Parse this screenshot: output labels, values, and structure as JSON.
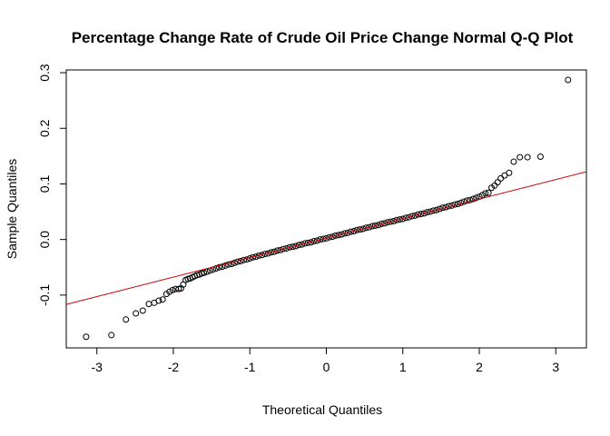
{
  "chart_data": {
    "type": "scatter",
    "title": "Percentage Change Rate of Crude Oil Price Change Normal Q-Q Plot",
    "xlabel": "Theoretical Quantiles",
    "ylabel": "Sample Quantiles",
    "xlim": [
      -3.4,
      3.4
    ],
    "ylim": [
      -0.195,
      0.305
    ],
    "xticks": [
      -3,
      -2,
      -1,
      0,
      1,
      2,
      3
    ],
    "yticks": [
      -0.1,
      0.0,
      0.1,
      0.2,
      0.3
    ],
    "xtick_labels": [
      "-3",
      "-2",
      "-1",
      "0",
      "1",
      "2",
      "3"
    ],
    "ytick_labels": [
      "-0.1",
      "0.0",
      "0.1",
      "0.2",
      "0.3"
    ],
    "grid": false,
    "legend": "none",
    "point_color": "#000000",
    "line_color": "#cc0000",
    "reference_line": {
      "intercept": 0.0025,
      "slope": 0.0351
    },
    "points": [
      [
        -3.14,
        -0.175
      ],
      [
        -2.81,
        -0.172
      ],
      [
        -2.62,
        -0.144
      ],
      [
        -2.49,
        -0.133
      ],
      [
        -2.4,
        -0.128
      ],
      [
        -2.32,
        -0.116
      ],
      [
        -2.25,
        -0.114
      ],
      [
        -2.19,
        -0.11
      ],
      [
        -2.14,
        -0.108
      ],
      [
        -2.09,
        -0.098
      ],
      [
        -2.05,
        -0.094
      ],
      [
        -2.01,
        -0.091
      ],
      [
        -1.97,
        -0.089
      ],
      [
        -1.93,
        -0.089
      ],
      [
        -1.9,
        -0.088
      ],
      [
        -1.87,
        -0.081
      ],
      [
        -1.84,
        -0.073
      ],
      [
        -1.81,
        -0.071
      ],
      [
        -1.78,
        -0.07
      ],
      [
        -1.75,
        -0.068
      ],
      [
        -1.72,
        -0.066
      ],
      [
        -1.69,
        -0.064
      ],
      [
        -1.66,
        -0.063
      ],
      [
        -1.63,
        -0.061
      ],
      [
        -1.6,
        -0.06
      ],
      [
        -1.56,
        -0.058
      ],
      [
        -1.52,
        -0.056
      ],
      [
        -1.48,
        -0.054
      ],
      [
        -1.44,
        -0.052
      ],
      [
        -1.4,
        -0.05
      ],
      [
        -1.36,
        -0.049
      ],
      [
        -1.32,
        -0.047
      ],
      [
        -1.28,
        -0.045
      ],
      [
        -1.24,
        -0.044
      ],
      [
        -1.2,
        -0.042
      ],
      [
        -1.16,
        -0.04
      ],
      [
        -1.12,
        -0.039
      ],
      [
        -1.08,
        -0.037
      ],
      [
        -1.04,
        -0.036
      ],
      [
        -1.0,
        -0.034
      ],
      [
        -0.96,
        -0.032
      ],
      [
        -0.92,
        -0.031
      ],
      [
        -0.88,
        -0.029
      ],
      [
        -0.84,
        -0.028
      ],
      [
        -0.8,
        -0.026
      ],
      [
        -0.76,
        -0.025
      ],
      [
        -0.72,
        -0.023
      ],
      [
        -0.68,
        -0.022
      ],
      [
        -0.64,
        -0.02
      ],
      [
        -0.6,
        -0.019
      ],
      [
        -0.56,
        -0.017
      ],
      [
        -0.52,
        -0.016
      ],
      [
        -0.48,
        -0.014
      ],
      [
        -0.44,
        -0.013
      ],
      [
        -0.4,
        -0.012
      ],
      [
        -0.36,
        -0.01
      ],
      [
        -0.32,
        -0.009
      ],
      [
        -0.28,
        -0.007
      ],
      [
        -0.24,
        -0.006
      ],
      [
        -0.2,
        -0.005
      ],
      [
        -0.16,
        -0.003
      ],
      [
        -0.12,
        -0.002
      ],
      [
        -0.08,
        0.0
      ],
      [
        -0.04,
        0.001
      ],
      [
        0.0,
        0.002
      ],
      [
        0.04,
        0.004
      ],
      [
        0.08,
        0.005
      ],
      [
        0.12,
        0.007
      ],
      [
        0.16,
        0.008
      ],
      [
        0.2,
        0.009
      ],
      [
        0.24,
        0.011
      ],
      [
        0.28,
        0.012
      ],
      [
        0.32,
        0.014
      ],
      [
        0.36,
        0.015
      ],
      [
        0.4,
        0.017
      ],
      [
        0.44,
        0.018
      ],
      [
        0.48,
        0.019
      ],
      [
        0.52,
        0.021
      ],
      [
        0.56,
        0.022
      ],
      [
        0.6,
        0.024
      ],
      [
        0.64,
        0.025
      ],
      [
        0.68,
        0.026
      ],
      [
        0.72,
        0.028
      ],
      [
        0.76,
        0.029
      ],
      [
        0.8,
        0.031
      ],
      [
        0.84,
        0.032
      ],
      [
        0.88,
        0.033
      ],
      [
        0.92,
        0.035
      ],
      [
        0.96,
        0.036
      ],
      [
        1.0,
        0.037
      ],
      [
        1.04,
        0.039
      ],
      [
        1.08,
        0.04
      ],
      [
        1.12,
        0.042
      ],
      [
        1.16,
        0.043
      ],
      [
        1.2,
        0.045
      ],
      [
        1.24,
        0.046
      ],
      [
        1.28,
        0.047
      ],
      [
        1.32,
        0.049
      ],
      [
        1.36,
        0.05
      ],
      [
        1.4,
        0.052
      ],
      [
        1.44,
        0.053
      ],
      [
        1.48,
        0.055
      ],
      [
        1.52,
        0.057
      ],
      [
        1.56,
        0.058
      ],
      [
        1.6,
        0.06
      ],
      [
        1.64,
        0.061
      ],
      [
        1.68,
        0.063
      ],
      [
        1.72,
        0.064
      ],
      [
        1.76,
        0.066
      ],
      [
        1.8,
        0.068
      ],
      [
        1.84,
        0.07
      ],
      [
        1.88,
        0.071
      ],
      [
        1.92,
        0.073
      ],
      [
        1.96,
        0.075
      ],
      [
        2.0,
        0.077
      ],
      [
        2.04,
        0.08
      ],
      [
        2.08,
        0.083
      ],
      [
        2.12,
        0.084
      ],
      [
        2.16,
        0.093
      ],
      [
        2.2,
        0.097
      ],
      [
        2.24,
        0.103
      ],
      [
        2.28,
        0.11
      ],
      [
        2.33,
        0.115
      ],
      [
        2.39,
        0.12
      ],
      [
        2.45,
        0.14
      ],
      [
        2.53,
        0.148
      ],
      [
        2.63,
        0.148
      ],
      [
        2.8,
        0.149
      ],
      [
        3.16,
        0.287
      ]
    ]
  }
}
